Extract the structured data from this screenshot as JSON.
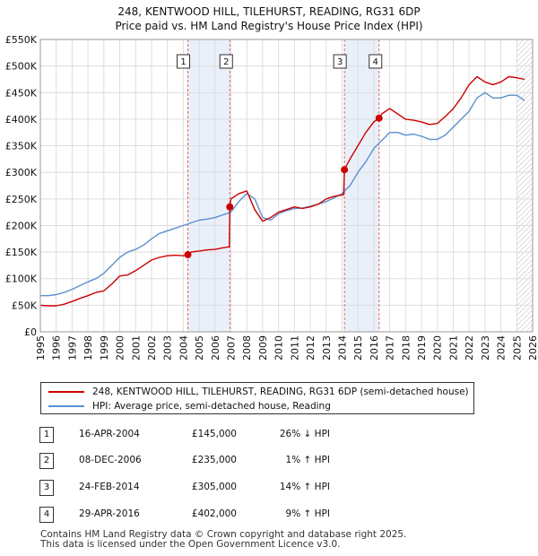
{
  "title": "248, KENTWOOD HILL, TILEHURST, READING, RG31 6DP",
  "subtitle": "Price paid vs. HM Land Registry's House Price Index (HPI)",
  "chart_data": {
    "type": "line",
    "title": "248, KENTWOOD HILL, TILEHURST, READING, RG31 6DP",
    "subtitle": "Price paid vs. HM Land Registry's House Price Index (HPI)",
    "xlabel": "",
    "ylabel": "",
    "xlim": [
      1995,
      2026
    ],
    "ylim": [
      0,
      550000
    ],
    "grid": true,
    "x_ticks": [
      1995,
      1996,
      1997,
      1998,
      1999,
      2000,
      2001,
      2002,
      2003,
      2004,
      2005,
      2006,
      2007,
      2008,
      2009,
      2010,
      2011,
      2012,
      2013,
      2014,
      2015,
      2016,
      2017,
      2018,
      2019,
      2020,
      2021,
      2022,
      2023,
      2024,
      2025,
      2026
    ],
    "y_ticks": [
      0,
      50000,
      100000,
      150000,
      200000,
      250000,
      300000,
      350000,
      400000,
      450000,
      500000,
      550000
    ],
    "y_tick_labels": [
      "£0",
      "£50K",
      "£100K",
      "£150K",
      "£200K",
      "£250K",
      "£300K",
      "£350K",
      "£400K",
      "£450K",
      "£500K",
      "£550K"
    ],
    "series": [
      {
        "name": "248, KENTWOOD HILL, TILEHURST, READING, RG31 6DP (semi-detached house)",
        "color": "#cc0000",
        "x": [
          1995.0,
          1995.5,
          1996.0,
          1996.5,
          1997.0,
          1997.5,
          1998.0,
          1998.5,
          1999.0,
          1999.5,
          2000.0,
          2000.5,
          2001.0,
          2001.5,
          2002.0,
          2002.5,
          2003.0,
          2003.5,
          2004.0,
          2004.29,
          2004.5,
          2005.0,
          2005.5,
          2006.0,
          2006.5,
          2006.9,
          2006.93,
          2007.0,
          2007.5,
          2008.0,
          2008.5,
          2009.0,
          2009.5,
          2010.0,
          2010.5,
          2011.0,
          2011.5,
          2012.0,
          2012.5,
          2013.0,
          2013.5,
          2014.1,
          2014.15,
          2014.5,
          2015.0,
          2015.5,
          2016.0,
          2016.33,
          2016.5,
          2017.0,
          2017.5,
          2018.0,
          2018.5,
          2019.0,
          2019.5,
          2020.0,
          2020.5,
          2021.0,
          2021.5,
          2022.0,
          2022.5,
          2023.0,
          2023.5,
          2024.0,
          2024.5,
          2025.0,
          2025.5
        ],
        "values": [
          50000,
          49000,
          49000,
          52000,
          57000,
          63000,
          68000,
          74000,
          77000,
          90000,
          105000,
          107000,
          115000,
          125000,
          135000,
          140000,
          143000,
          144000,
          143000,
          145000,
          150000,
          152000,
          154000,
          155000,
          158000,
          160000,
          235000,
          250000,
          260000,
          265000,
          230000,
          208000,
          215000,
          225000,
          230000,
          235000,
          232000,
          235000,
          240000,
          250000,
          255000,
          258000,
          305000,
          325000,
          350000,
          375000,
          395000,
          402000,
          410000,
          420000,
          410000,
          400000,
          398000,
          395000,
          390000,
          392000,
          405000,
          420000,
          440000,
          465000,
          480000,
          470000,
          465000,
          470000,
          480000,
          478000,
          475000
        ]
      },
      {
        "name": "HPI: Average price, semi-detached house, Reading",
        "color": "#5b8fd0",
        "x": [
          1995.0,
          1995.5,
          1996.0,
          1996.5,
          1997.0,
          1997.5,
          1998.0,
          1998.5,
          1999.0,
          1999.5,
          2000.0,
          2000.5,
          2001.0,
          2001.5,
          2002.0,
          2002.5,
          2003.0,
          2003.5,
          2004.0,
          2004.5,
          2005.0,
          2005.5,
          2006.0,
          2006.5,
          2007.0,
          2007.5,
          2008.0,
          2008.5,
          2009.0,
          2009.5,
          2010.0,
          2010.5,
          2011.0,
          2011.5,
          2012.0,
          2012.5,
          2013.0,
          2013.5,
          2014.0,
          2014.5,
          2015.0,
          2015.5,
          2016.0,
          2016.5,
          2017.0,
          2017.5,
          2018.0,
          2018.5,
          2019.0,
          2019.5,
          2020.0,
          2020.5,
          2021.0,
          2021.5,
          2022.0,
          2022.5,
          2023.0,
          2023.5,
          2024.0,
          2024.5,
          2025.0,
          2025.5
        ],
        "values": [
          68000,
          68000,
          70000,
          74000,
          80000,
          87000,
          94000,
          100000,
          110000,
          125000,
          140000,
          150000,
          155000,
          163000,
          175000,
          185000,
          190000,
          195000,
          200000,
          205000,
          210000,
          212000,
          215000,
          220000,
          225000,
          245000,
          260000,
          250000,
          215000,
          210000,
          222000,
          228000,
          232000,
          233000,
          236000,
          240000,
          245000,
          252000,
          260000,
          275000,
          300000,
          320000,
          345000,
          360000,
          375000,
          375000,
          370000,
          372000,
          368000,
          362000,
          362000,
          370000,
          385000,
          400000,
          415000,
          440000,
          450000,
          440000,
          440000,
          445000,
          445000,
          435000
        ]
      }
    ],
    "sales": [
      {
        "label": "1",
        "x": 2004.29,
        "value": 145000
      },
      {
        "label": "2",
        "x": 2006.93,
        "value": 235000
      },
      {
        "label": "3",
        "x": 2014.15,
        "value": 305000
      },
      {
        "label": "4",
        "x": 2016.33,
        "value": 402000
      }
    ],
    "shaded_spans": [
      [
        2004.29,
        2006.93
      ],
      [
        2014.15,
        2016.33
      ]
    ],
    "hatch_start": 2025.0
  },
  "legend": {
    "property_label": "248, KENTWOOD HILL, TILEHURST, READING, RG31 6DP (semi-detached house)",
    "property_color": "#cc0000",
    "hpi_label": "HPI: Average price, semi-detached house, Reading",
    "hpi_color": "#5b8fd0"
  },
  "transactions": [
    {
      "num": "1",
      "date": "16-APR-2004",
      "price": "£145,000",
      "hpi": "26% ↓ HPI"
    },
    {
      "num": "2",
      "date": "08-DEC-2006",
      "price": "£235,000",
      "hpi": "1% ↑ HPI"
    },
    {
      "num": "3",
      "date": "24-FEB-2014",
      "price": "£305,000",
      "hpi": "14% ↑ HPI"
    },
    {
      "num": "4",
      "date": "29-APR-2016",
      "price": "£402,000",
      "hpi": "9% ↑ HPI"
    }
  ],
  "footer": {
    "line1": "Contains HM Land Registry data © Crown copyright and database right 2025.",
    "line2": "This data is licensed under the Open Government Licence v3.0."
  }
}
